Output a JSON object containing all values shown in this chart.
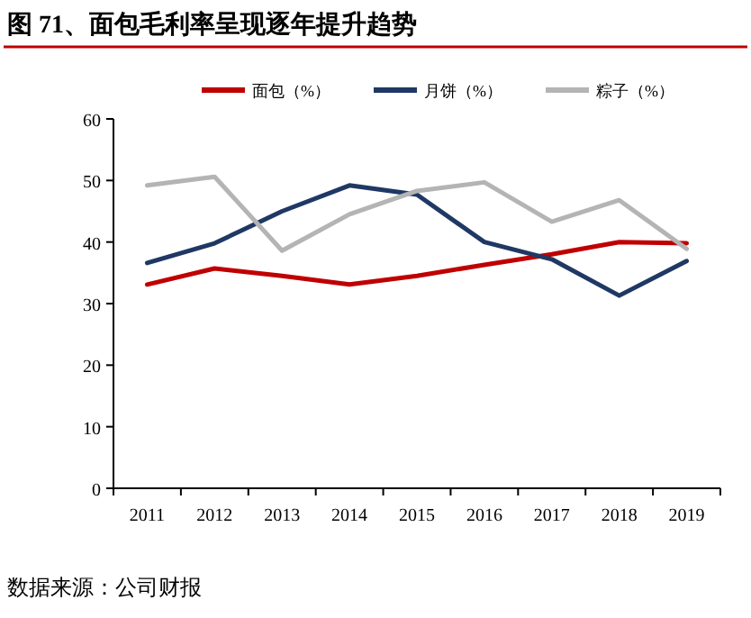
{
  "chart_data": {
    "type": "line",
    "title": "图 71、面包毛利率呈现逐年提升趋势",
    "categories": [
      "2011",
      "2012",
      "2013",
      "2014",
      "2015",
      "2016",
      "2017",
      "2018",
      "2019"
    ],
    "series": [
      {
        "name": "面包（%）",
        "color": "#c00000",
        "values": [
          33.1,
          35.7,
          34.5,
          33.1,
          34.5,
          36.3,
          38,
          40,
          39.8
        ]
      },
      {
        "name": "月饼（%）",
        "color": "#1f3864",
        "values": [
          36.6,
          39.8,
          45,
          49.2,
          47.7,
          40,
          37.2,
          31.3,
          36.9
        ]
      },
      {
        "name": "粽子（%）",
        "color": "#b4b4b4",
        "values": [
          49.2,
          50.6,
          38.6,
          44.5,
          48.3,
          49.7,
          43.3,
          46.8,
          38.9
        ]
      }
    ],
    "ylim": [
      0,
      60
    ],
    "yticks": [
      0,
      10,
      20,
      30,
      40,
      50,
      60
    ],
    "legend": "top",
    "grid": false,
    "annotations": [
      "数据来源：公司财报"
    ]
  }
}
